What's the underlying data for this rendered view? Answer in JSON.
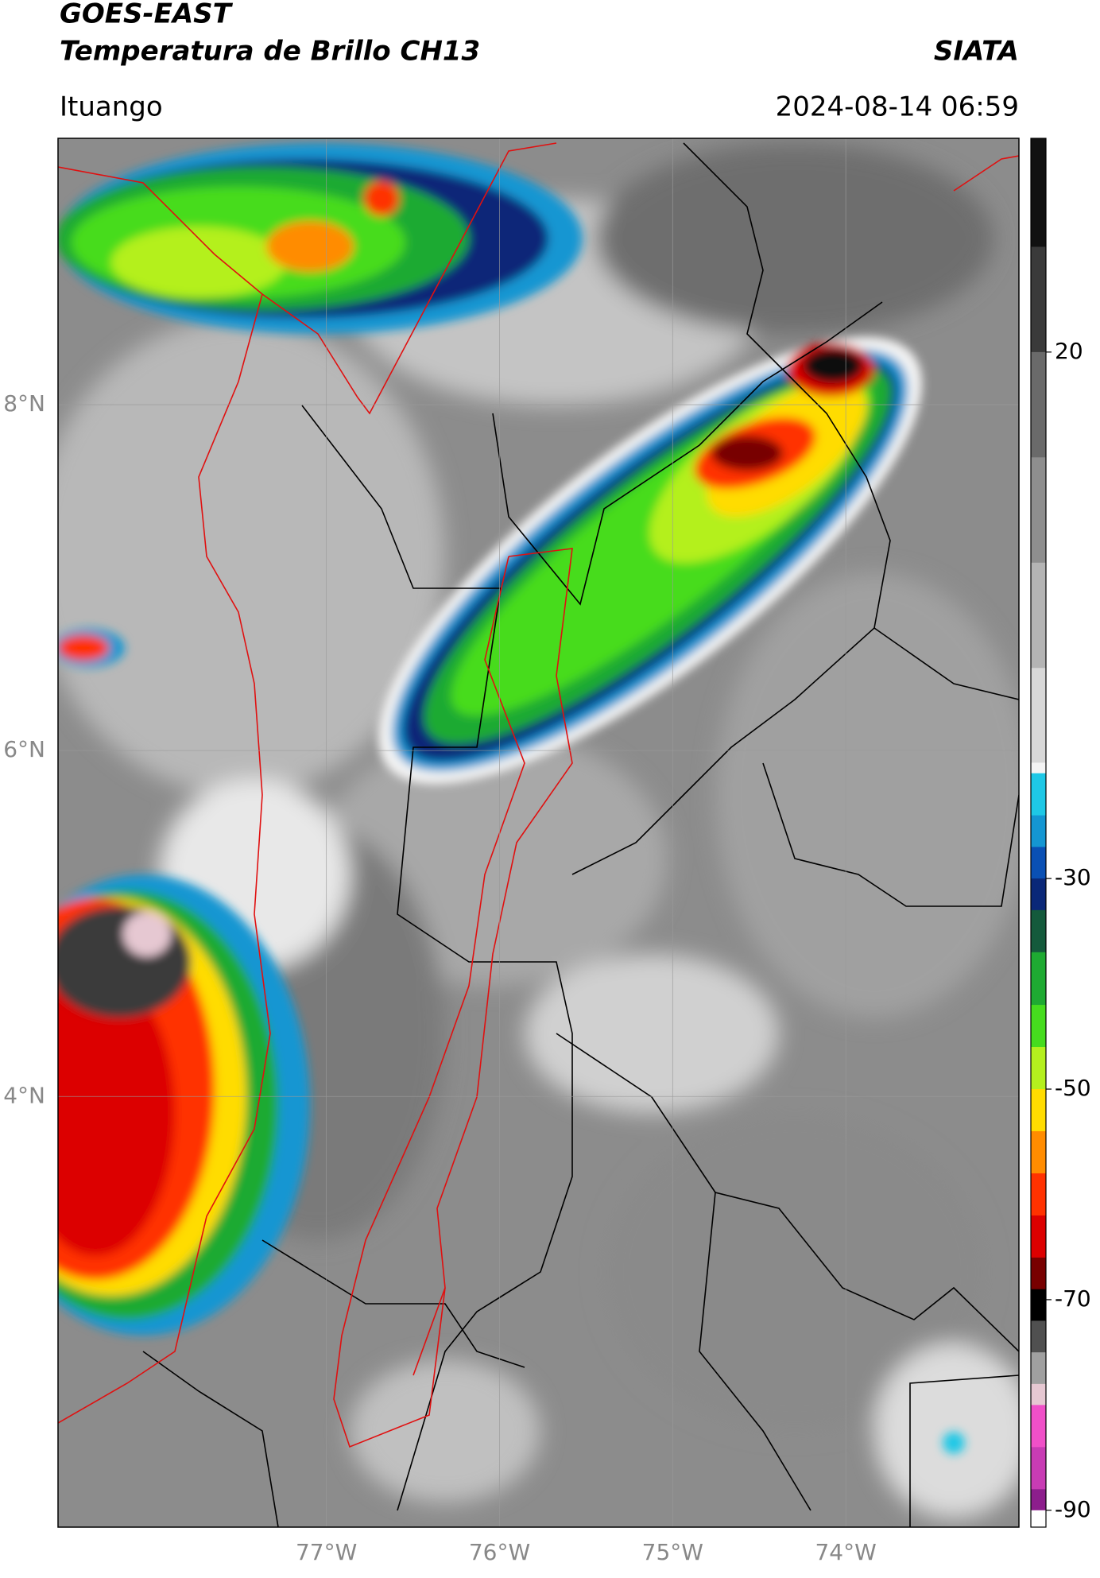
{
  "chart_data": {
    "type": "map",
    "title": "GOES-EAST",
    "subtitle": "Temperatura de Brillo CH13",
    "source": "SIATA",
    "location": "Ituango",
    "timestamp": "2024-08-14 06:59",
    "xlim": [
      -78.55,
      -73.0
    ],
    "ylim": [
      1.51,
      9.54
    ],
    "xticks": [
      {
        "value": -77,
        "label": "77°W"
      },
      {
        "value": -76,
        "label": "76°W"
      },
      {
        "value": -75,
        "label": "75°W"
      },
      {
        "value": -74,
        "label": "74°W"
      }
    ],
    "yticks": [
      {
        "value": 8,
        "label": "8°N"
      },
      {
        "value": 6,
        "label": "6°N"
      },
      {
        "value": 4,
        "label": "4°N"
      }
    ],
    "grid": true,
    "colorbar": {
      "lim": [
        -91.6,
        40.3
      ],
      "ticks": [
        20,
        -30,
        -50,
        -70,
        -90
      ],
      "stops": [
        {
          "value": 40.3,
          "color": "#111111"
        },
        {
          "value": 30,
          "color": "#3a3a3a"
        },
        {
          "value": 20,
          "color": "#6a6a6a"
        },
        {
          "value": 10,
          "color": "#8e8e8e"
        },
        {
          "value": 0,
          "color": "#b4b4b4"
        },
        {
          "value": -10,
          "color": "#d8d8d8"
        },
        {
          "value": -19,
          "color": "#f4f4f4"
        },
        {
          "value": -20,
          "color": "#1ec8e6"
        },
        {
          "value": -24,
          "color": "#1496d2"
        },
        {
          "value": -27,
          "color": "#0a50b4"
        },
        {
          "value": -30,
          "color": "#0a2878"
        },
        {
          "value": -33,
          "color": "#145a3c"
        },
        {
          "value": -37,
          "color": "#1eaa32"
        },
        {
          "value": -42,
          "color": "#46dc1e"
        },
        {
          "value": -46,
          "color": "#b4f01e"
        },
        {
          "value": -50,
          "color": "#ffdc00"
        },
        {
          "value": -54,
          "color": "#ff8c00"
        },
        {
          "value": -58,
          "color": "#ff3200"
        },
        {
          "value": -62,
          "color": "#dc0000"
        },
        {
          "value": -66,
          "color": "#780000"
        },
        {
          "value": -69,
          "color": "#000000"
        },
        {
          "value": -72,
          "color": "#505050"
        },
        {
          "value": -75,
          "color": "#a0a0a0"
        },
        {
          "value": -78,
          "color": "#e6c8d2"
        },
        {
          "value": -80,
          "color": "#f050c8"
        },
        {
          "value": -84,
          "color": "#c83cb4"
        },
        {
          "value": -88,
          "color": "#8c1e8c"
        },
        {
          "value": -90,
          "color": "#ffffff"
        },
        {
          "value": -91.6,
          "color": "#ffffff"
        }
      ]
    }
  }
}
